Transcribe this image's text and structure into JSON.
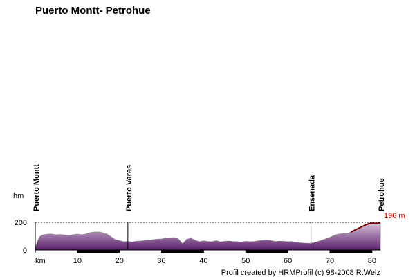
{
  "chart_data": {
    "type": "area",
    "title": "Puerto Montt- Petrohue",
    "xlabel": "km",
    "ylabel": "hm",
    "xlim": [
      0,
      82
    ],
    "ylim": [
      0,
      200
    ],
    "x_ticks": [
      10,
      20,
      30,
      40,
      50,
      60,
      70,
      80
    ],
    "y_ticks": [
      0,
      200
    ],
    "reference_line": {
      "y": 200,
      "style": "dashed"
    },
    "places": [
      {
        "name": "Puerto Montt",
        "km": 0
      },
      {
        "name": "Puerto Varas",
        "km": 22
      },
      {
        "name": "Ensenada",
        "km": 65.5
      },
      {
        "name": "Petrohue",
        "km": 82
      }
    ],
    "end_label": "196 m",
    "x": [
      0,
      0.5,
      1,
      1.5,
      2,
      3,
      4,
      5,
      6,
      7,
      8,
      9,
      10,
      11,
      12,
      13,
      14,
      15,
      16,
      17,
      18,
      19,
      20,
      21,
      22,
      23,
      24,
      25,
      26,
      27,
      28,
      29,
      30,
      31,
      32,
      33,
      34,
      35,
      36,
      37,
      38,
      39,
      40,
      41,
      42,
      43,
      44,
      45,
      46,
      47,
      48,
      49,
      50,
      51,
      52,
      53,
      54,
      55,
      56,
      57,
      58,
      59,
      60,
      61,
      62,
      63,
      64,
      65,
      66,
      67,
      68,
      69,
      70,
      71,
      72,
      73,
      74,
      75,
      76,
      77,
      78,
      79,
      80,
      81,
      82
    ],
    "y": [
      20,
      60,
      95,
      105,
      110,
      115,
      115,
      110,
      112,
      108,
      105,
      110,
      115,
      110,
      115,
      125,
      130,
      130,
      125,
      115,
      95,
      75,
      68,
      60,
      62,
      58,
      63,
      65,
      68,
      70,
      75,
      78,
      80,
      85,
      88,
      90,
      80,
      45,
      78,
      85,
      70,
      60,
      66,
      62,
      60,
      68,
      58,
      63,
      65,
      62,
      60,
      58,
      63,
      60,
      62,
      66,
      70,
      72,
      68,
      62,
      64,
      63,
      60,
      62,
      55,
      52,
      50,
      48,
      52,
      60,
      70,
      80,
      92,
      105,
      115,
      118,
      120,
      130,
      145,
      160,
      175,
      188,
      195,
      192,
      196
    ],
    "climb_highlight": {
      "x_from": 75,
      "x_to": 82
    }
  },
  "labels": {
    "km": "km",
    "hm": "hm",
    "credit": "Profil created by HRMProfil (c) 98-2008 R.Welz"
  },
  "colors": {
    "fill_top": "#d6c3da",
    "fill_bottom": "#5a1e6a",
    "outline": "#888888",
    "climb_line": "#7a0000",
    "end_label": "#cc0000",
    "axis": "#000000"
  }
}
